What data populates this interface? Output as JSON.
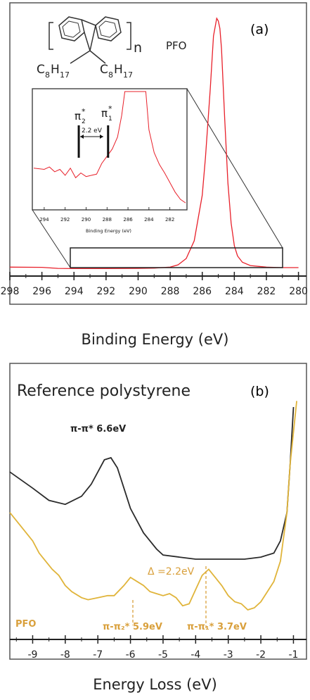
{
  "panel_a": {
    "panel_label": "(a)",
    "structure": {
      "n": "n",
      "name": "PFO",
      "substituent_c": "C",
      "substituent_c_sub": "8",
      "substituent_h": "H",
      "substituent_h_sub": "17"
    },
    "xlabel": "Binding Energy (eV)",
    "inset": {
      "pi2_label": "π",
      "pi2_sub": "2",
      "pi1_label": "π",
      "pi1_sub": "1",
      "star": "*",
      "gap_label": "2.2 eV",
      "xlabel": "Binding Energy (eV)"
    }
  },
  "panel_b": {
    "panel_label": "(b)",
    "title": "Reference polystyrene",
    "ref_peak_label": "π-π* 6.6eV",
    "delta_label": "Δ =2.2eV",
    "pfo_label": "PFO",
    "peak2_label": "π-π₂* 5.9eV",
    "peak1_label": "π-π₁* 3.7eV",
    "xlabel": "Energy Loss (eV)"
  },
  "colors": {
    "pfo_a": "#e8202a",
    "pfo_b": "#e0b43a",
    "reference": "#2b2b2b",
    "annot_b": "#d9a03c"
  },
  "chart_data": [
    {
      "type": "line",
      "panel": "a",
      "xlim": [
        298,
        279.5
      ],
      "xticks": [
        298,
        296,
        294,
        292,
        290,
        288,
        286,
        284,
        282,
        280
      ],
      "series": [
        {
          "name": "PFO",
          "x": [
            298,
            296,
            295,
            294,
            292,
            290,
            289,
            288,
            287.5,
            287,
            286.5,
            286,
            285.8,
            285.5,
            285.3,
            285.1,
            285,
            284.9,
            284.8,
            284.6,
            284.4,
            284.2,
            284,
            283.8,
            283.5,
            283,
            282,
            281,
            280
          ],
          "y": [
            0.016,
            0.015,
            0.011,
            0.01,
            0.01,
            0.011,
            0.012,
            0.016,
            0.025,
            0.05,
            0.12,
            0.3,
            0.45,
            0.72,
            0.93,
            1.0,
            0.99,
            0.96,
            0.88,
            0.6,
            0.35,
            0.19,
            0.1,
            0.06,
            0.035,
            0.022,
            0.016,
            0.014,
            0.014
          ]
        }
      ],
      "inset": {
        "xlim": [
          295,
          280.5
        ],
        "xticks": [
          294,
          292,
          290,
          288,
          286,
          284,
          282
        ],
        "markers_x": [
          290.7,
          287.9
        ],
        "series_x": [
          295,
          294,
          293.5,
          293,
          292.5,
          292,
          291.5,
          291,
          290.5,
          290,
          289.5,
          289,
          288.5,
          288,
          287.5,
          287,
          286.6,
          286.3,
          284.3,
          284,
          283.5,
          283,
          282.5,
          282,
          281.5,
          281,
          280.5
        ],
        "series_y": [
          0.36,
          0.35,
          0.37,
          0.33,
          0.35,
          0.3,
          0.36,
          0.28,
          0.32,
          0.29,
          0.3,
          0.31,
          0.4,
          0.46,
          0.52,
          0.62,
          0.8,
          1.0,
          1.0,
          0.68,
          0.49,
          0.39,
          0.32,
          0.24,
          0.16,
          0.1,
          0.07
        ]
      }
    },
    {
      "type": "line",
      "panel": "b",
      "xlim": [
        -9.7,
        -0.6
      ],
      "xticks": [
        -9,
        -8,
        -7,
        -6,
        -5,
        -4,
        -3,
        -2,
        -1
      ],
      "series": [
        {
          "name": "Reference polystyrene",
          "x": [
            -9.7,
            -9,
            -8.5,
            -8,
            -7.5,
            -7.2,
            -7,
            -6.8,
            -6.6,
            -6.4,
            -6.2,
            -6,
            -5.6,
            -5.2,
            -5,
            -4.5,
            -4,
            -3.5,
            -3,
            -2.5,
            -2,
            -1.6,
            -1.4,
            -1.2,
            -1.1,
            -1
          ],
          "y": [
            0.68,
            0.6,
            0.54,
            0.52,
            0.56,
            0.62,
            0.68,
            0.74,
            0.75,
            0.7,
            0.6,
            0.5,
            0.38,
            0.3,
            0.27,
            0.26,
            0.25,
            0.25,
            0.25,
            0.25,
            0.26,
            0.28,
            0.34,
            0.48,
            0.72,
            1.0
          ]
        },
        {
          "name": "PFO",
          "x": [
            -9.7,
            -9.5,
            -9.2,
            -9,
            -8.8,
            -8.6,
            -8.4,
            -8.2,
            -8,
            -7.8,
            -7.5,
            -7.3,
            -7,
            -6.7,
            -6.5,
            -6.2,
            -6,
            -5.8,
            -5.6,
            -5.4,
            -5.2,
            -5,
            -4.8,
            -4.6,
            -4.4,
            -4.2,
            -4,
            -3.8,
            -3.6,
            -3.4,
            -3.2,
            -3,
            -2.8,
            -2.6,
            -2.4,
            -2.2,
            -2,
            -1.8,
            -1.6,
            -1.4,
            -1.2,
            -1.1,
            -0.9
          ],
          "y": [
            0.48,
            0.44,
            0.38,
            0.34,
            0.28,
            0.24,
            0.2,
            0.17,
            0.12,
            0.09,
            0.06,
            0.05,
            0.06,
            0.07,
            0.07,
            0.12,
            0.16,
            0.14,
            0.12,
            0.09,
            0.08,
            0.07,
            0.08,
            0.06,
            0.02,
            0.03,
            0.1,
            0.17,
            0.2,
            0.16,
            0.12,
            0.07,
            0.04,
            0.03,
            0.0,
            0.01,
            0.04,
            0.09,
            0.14,
            0.24,
            0.48,
            0.72,
            1.03
          ]
        }
      ]
    }
  ]
}
